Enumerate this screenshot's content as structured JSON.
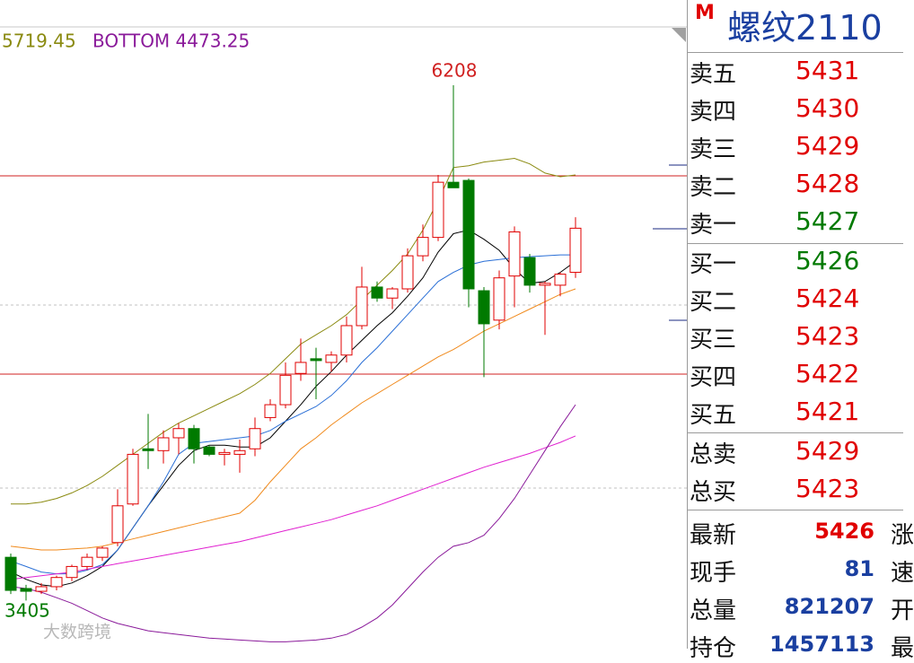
{
  "legend": {
    "top": "5719.45",
    "bottom": "BOTTOM 4473.25"
  },
  "chart_data": {
    "type": "candlestick",
    "ylim": [
      3143,
      6525
    ],
    "annotations": {
      "high": "6208",
      "low": "3405"
    },
    "open": [
      3640,
      3470,
      3455,
      3480,
      3530,
      3590,
      3640,
      3720,
      3930,
      4230,
      4220,
      4290,
      4340,
      4240,
      4200,
      4200,
      4230,
      4400,
      4470,
      4640,
      4720,
      4700,
      4740,
      4900,
      5110,
      5050,
      5100,
      5280,
      5380,
      5680,
      5690,
      5090,
      4930,
      5170,
      5270,
      5120,
      5120,
      5190
    ],
    "high": [
      3660,
      3490,
      3500,
      3540,
      3600,
      3660,
      3700,
      4010,
      4230,
      4420,
      4330,
      4370,
      4360,
      4250,
      4230,
      4280,
      4400,
      4500,
      4700,
      4830,
      4780,
      4760,
      4950,
      5220,
      5140,
      5110,
      5320,
      5450,
      5720,
      6208,
      5700,
      5110,
      5200,
      5440,
      5290,
      5140,
      5190,
      5490
    ],
    "low": [
      3440,
      3405,
      3440,
      3460,
      3510,
      3570,
      3620,
      3700,
      3920,
      4120,
      4150,
      4200,
      4150,
      4190,
      4140,
      4100,
      4190,
      4380,
      4450,
      4600,
      4500,
      4650,
      4700,
      4880,
      5030,
      4990,
      5080,
      5250,
      5360,
      5650,
      5000,
      4620,
      4880,
      5000,
      5080,
      4850,
      5060,
      5160
    ],
    "close": [
      3460,
      3455,
      3480,
      3530,
      3590,
      3640,
      3690,
      3920,
      4200,
      4220,
      4290,
      4340,
      4230,
      4200,
      4210,
      4220,
      4340,
      4470,
      4630,
      4700,
      4710,
      4740,
      4900,
      5110,
      5050,
      5100,
      5280,
      5380,
      5680,
      5650,
      5100,
      4910,
      5160,
      5410,
      5120,
      5130,
      5180,
      5430
    ],
    "up_color": "#e00000",
    "down_color": "#007a00",
    "series": [
      {
        "color": "#000000",
        "values": [
          3560,
          3520,
          3490,
          3480,
          3500,
          3540,
          3590,
          3680,
          3800,
          3920,
          4030,
          4140,
          4220,
          4250,
          4250,
          4240,
          4240,
          4290,
          4380,
          4470,
          4570,
          4650,
          4740,
          4820,
          4900,
          4970,
          5060,
          5160,
          5300,
          5400,
          5420,
          5370,
          5310,
          5210,
          5130,
          5140,
          5190,
          5250
        ]
      },
      {
        "color": "#2a6fd6",
        "values": [
          3620,
          3590,
          3560,
          3550,
          3550,
          3570,
          3600,
          3680,
          3800,
          3920,
          4050,
          4200,
          4260,
          4270,
          4280,
          4290,
          4300,
          4330,
          4380,
          4420,
          4460,
          4520,
          4600,
          4700,
          4780,
          4870,
          4960,
          5050,
          5140,
          5190,
          5230,
          5250,
          5260,
          5270,
          5275,
          5280,
          5285,
          5285
        ]
      },
      {
        "color": "#f08a1c",
        "values": [
          3700,
          3690,
          3680,
          3680,
          3685,
          3690,
          3700,
          3720,
          3740,
          3760,
          3780,
          3800,
          3820,
          3840,
          3860,
          3880,
          3950,
          4050,
          4140,
          4230,
          4290,
          4360,
          4420,
          4480,
          4530,
          4580,
          4630,
          4680,
          4730,
          4770,
          4820,
          4870,
          4910,
          4950,
          4990,
          5030,
          5070,
          5100
        ]
      },
      {
        "color": "#e020d0",
        "values": [
          3520,
          3530,
          3540,
          3550,
          3560,
          3575,
          3590,
          3605,
          3620,
          3635,
          3650,
          3665,
          3680,
          3695,
          3710,
          3725,
          3745,
          3765,
          3785,
          3805,
          3825,
          3845,
          3870,
          3895,
          3920,
          3950,
          3980,
          4010,
          4040,
          4070,
          4100,
          4130,
          4155,
          4180,
          4205,
          4235,
          4265,
          4300
        ]
      },
      {
        "color": "#8a8a10",
        "values": [
          3930,
          3930,
          3940,
          3960,
          3990,
          4030,
          4080,
          4140,
          4200,
          4260,
          4320,
          4370,
          4410,
          4450,
          4490,
          4530,
          4580,
          4640,
          4720,
          4800,
          4850,
          4900,
          4960,
          5040,
          5120,
          5200,
          5290,
          5420,
          5580,
          5760,
          5770,
          5790,
          5800,
          5810,
          5780,
          5730,
          5710,
          5720
        ]
      },
      {
        "color": "#8a1a9a",
        "values": [
          3480,
          3470,
          3450,
          3420,
          3390,
          3350,
          3310,
          3280,
          3260,
          3240,
          3230,
          3220,
          3210,
          3200,
          3195,
          3190,
          3185,
          3180,
          3180,
          3185,
          3190,
          3200,
          3220,
          3260,
          3310,
          3380,
          3470,
          3560,
          3640,
          3700,
          3720,
          3760,
          3850,
          3960,
          4090,
          4220,
          4350,
          4470
        ]
      }
    ]
  },
  "quote": {
    "flag": "M",
    "symbol": "螺纹2110",
    "sell": [
      {
        "label": "卖五",
        "price": "5431",
        "color": "#e00000"
      },
      {
        "label": "卖四",
        "price": "5430",
        "color": "#e00000"
      },
      {
        "label": "卖三",
        "price": "5429",
        "color": "#e00000"
      },
      {
        "label": "卖二",
        "price": "5428",
        "color": "#e00000"
      },
      {
        "label": "卖一",
        "price": "5427",
        "color": "#007a00"
      }
    ],
    "buy": [
      {
        "label": "买一",
        "price": "5426",
        "color": "#007a00"
      },
      {
        "label": "买二",
        "price": "5424",
        "color": "#e00000"
      },
      {
        "label": "买三",
        "price": "5423",
        "color": "#e00000"
      },
      {
        "label": "买四",
        "price": "5422",
        "color": "#e00000"
      },
      {
        "label": "买五",
        "price": "5421",
        "color": "#e00000"
      }
    ],
    "totals": [
      {
        "label": "总卖",
        "price": "5429",
        "color": "#e00000"
      },
      {
        "label": "总买",
        "price": "5423",
        "color": "#e00000"
      }
    ],
    "stats": [
      {
        "label": "最新",
        "value": "5426",
        "color": "#e00000",
        "side": "涨"
      },
      {
        "label": "现手",
        "value": "81",
        "color": "#1a3fa0",
        "side": "速"
      },
      {
        "label": "总量",
        "value": "821207",
        "color": "#1a3fa0",
        "side": "开"
      },
      {
        "label": "持仓",
        "value": "1457113",
        "color": "#1a3fa0",
        "side": "最"
      }
    ]
  },
  "watermark": "大数跨境"
}
